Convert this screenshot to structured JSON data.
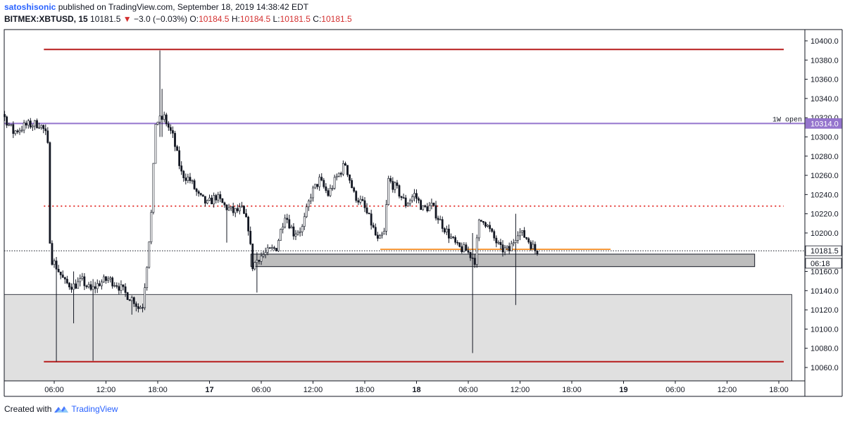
{
  "header": {
    "author": "satoshisonic",
    "published_text": "published on TradingView.com, September 18, 2019 14:38:42 EDT",
    "symbol": "BITMEX:XBTUSD, 15",
    "last": "10181.5",
    "change_arrow": "▼",
    "change": "−3.0 (−0.03%)",
    "o_label": "O:",
    "o_value": "10184.5",
    "h_label": "H:",
    "h_value": "10184.5",
    "l_label": "L:",
    "l_value": "10181.5",
    "c_label": "C:",
    "c_value": "10181.5"
  },
  "footer": {
    "created_with": "Created with",
    "brand": "TradingView",
    "logo_icon": "tradingview-logo-icon"
  },
  "colors": {
    "candle": "#131722",
    "range_line": "#b71c1c",
    "mid_dotted": "#e53935",
    "weekly_open": "#9575cd",
    "orange_line": "#f57c00",
    "zone_dark": "#bdbdbd",
    "zone_light": "#e0e0e0",
    "down_text": "#d32f2f"
  },
  "chart_data": {
    "type": "candlestick",
    "symbol": "BITMEX:XBTUSD",
    "interval": "15",
    "ylim": [
      10044,
      10420
    ],
    "y_ticks": [
      10060,
      10080,
      10100,
      10120,
      10140,
      10160,
      10180,
      10200,
      10220,
      10240,
      10260,
      10280,
      10300,
      10320,
      10340,
      10360,
      10380,
      10400
    ],
    "y_tick_labels": [
      "10060.0",
      "10080.0",
      "10100.0",
      "10120.0",
      "10140.0",
      "10160.0",
      "10180.0",
      "10200.0",
      "10220.0",
      "10240.0",
      "10260.0",
      "10280.0",
      "10300.0",
      "10320.0",
      "10340.0",
      "10360.0",
      "10380.0",
      "10400.0"
    ],
    "x_hours_range": [
      -3,
      78
    ],
    "x_ticks": [
      {
        "h": 6,
        "label": "06:00",
        "bold": false
      },
      {
        "h": 12,
        "label": "12:00",
        "bold": false
      },
      {
        "h": 18,
        "label": "18:00",
        "bold": false
      },
      {
        "h": 24,
        "label": "17",
        "bold": true
      },
      {
        "h": 30,
        "label": "06:00",
        "bold": false
      },
      {
        "h": 36,
        "label": "12:00",
        "bold": false
      },
      {
        "h": 42,
        "label": "18:00",
        "bold": false
      },
      {
        "h": 48,
        "label": "18",
        "bold": true
      },
      {
        "h": 54,
        "label": "06:00",
        "bold": false
      },
      {
        "h": 60,
        "label": "12:00",
        "bold": false
      },
      {
        "h": 66,
        "label": "18:00",
        "bold": false
      },
      {
        "h": 72,
        "label": "19",
        "bold": true
      },
      {
        "h": 78,
        "label": "06:00",
        "bold": false
      },
      {
        "h": 84,
        "label": "12:00",
        "bold": false
      },
      {
        "h": 90,
        "label": "18:00",
        "bold": false
      }
    ],
    "horizontal_lines": [
      {
        "name": "range-high",
        "price": 10391,
        "h_start": 4.8,
        "h_end": 87.8,
        "style": "solid",
        "color": "#b71c1c"
      },
      {
        "name": "range-low",
        "price": 10066,
        "h_start": 4.8,
        "h_end": 87.8,
        "style": "solid",
        "color": "#b71c1c"
      },
      {
        "name": "mid-level",
        "price": 10228,
        "h_start": 4.8,
        "h_end": 87.8,
        "style": "dotted",
        "color": "#e53935"
      },
      {
        "name": "weekly-open",
        "price": 10314,
        "h_start": -3,
        "h_end": 91.5,
        "style": "solid",
        "color": "#9575cd"
      },
      {
        "name": "orange-level",
        "price": 10183,
        "h_start": 43.8,
        "h_end": 70.5,
        "style": "solid",
        "color": "#f57c00"
      },
      {
        "name": "last-price",
        "price": 10181.5,
        "h_start": -3,
        "h_end": 91.5,
        "style": "dotted",
        "color": "#131722"
      }
    ],
    "zones": [
      {
        "name": "demand-zone-upper",
        "price_high": 10178,
        "price_low": 10165,
        "h_start": 28.8,
        "h_end": 87.2,
        "color": "#bdbdbd"
      },
      {
        "name": "demand-zone-lower",
        "price_high": 10136,
        "price_low": 10044,
        "h_start": -3,
        "h_end": 91.5,
        "color": "#e0e0e0"
      }
    ],
    "price_labels": [
      {
        "name": "weekly-open-price-label",
        "text": "10314.0",
        "price": 10314,
        "bg": "#9575cd",
        "fg": "#ffffff"
      },
      {
        "name": "last-price-label",
        "text": "10181.5",
        "price": 10181.5,
        "bg": "#ffffff",
        "fg": "#131722"
      },
      {
        "name": "countdown-label",
        "text": "06:18",
        "price": 10168.5,
        "bg": "#ffffff",
        "fg": "#131722"
      }
    ],
    "annotations": [
      {
        "name": "weekly-open-annotation",
        "text": "1W open",
        "price": 10314
      }
    ],
    "key_points": [
      [
        -3,
        10332
      ],
      [
        -1.5,
        10338
      ],
      [
        0,
        10328
      ],
      [
        1.5,
        10305
      ],
      [
        3,
        10312
      ],
      [
        4.5,
        10314
      ],
      [
        5.2,
        10305
      ],
      [
        5.5,
        10290
      ],
      [
        5.8,
        10175
      ],
      [
        6.5,
        10165
      ],
      [
        7.5,
        10148
      ],
      [
        8.5,
        10145
      ],
      [
        9.5,
        10150
      ],
      [
        10.5,
        10140
      ],
      [
        11.5,
        10148
      ],
      [
        12.5,
        10152
      ],
      [
        13.5,
        10147
      ],
      [
        14.5,
        10137
      ],
      [
        15.5,
        10130
      ],
      [
        16,
        10122
      ],
      [
        16.5,
        10125
      ],
      [
        17,
        10168
      ],
      [
        17.5,
        10220
      ],
      [
        18,
        10315
      ],
      [
        19,
        10320
      ],
      [
        20,
        10300
      ],
      [
        21,
        10262
      ],
      [
        22,
        10255
      ],
      [
        23,
        10238
      ],
      [
        24,
        10230
      ],
      [
        25,
        10238
      ],
      [
        26,
        10228
      ],
      [
        27,
        10222
      ],
      [
        28,
        10224
      ],
      [
        28.8,
        10205
      ],
      [
        29.2,
        10165
      ],
      [
        30,
        10175
      ],
      [
        31,
        10180
      ],
      [
        32,
        10185
      ],
      [
        33,
        10220
      ],
      [
        34,
        10200
      ],
      [
        35,
        10205
      ],
      [
        36,
        10240
      ],
      [
        37,
        10255
      ],
      [
        38,
        10240
      ],
      [
        39,
        10258
      ],
      [
        40,
        10272
      ],
      [
        41,
        10240
      ],
      [
        42,
        10230
      ],
      [
        43,
        10210
      ],
      [
        43.8,
        10190
      ],
      [
        44.5,
        10200
      ],
      [
        45,
        10255
      ],
      [
        46,
        10245
      ],
      [
        47,
        10230
      ],
      [
        48,
        10240
      ],
      [
        49,
        10225
      ],
      [
        50,
        10228
      ],
      [
        51,
        10212
      ],
      [
        52,
        10198
      ],
      [
        53,
        10185
      ],
      [
        54,
        10182
      ],
      [
        55,
        10172
      ],
      [
        55.5,
        10210
      ],
      [
        56,
        10215
      ],
      [
        57,
        10198
      ],
      [
        58,
        10183
      ],
      [
        59,
        10182
      ],
      [
        60,
        10202
      ],
      [
        61,
        10195
      ],
      [
        62,
        10182
      ]
    ],
    "wick_overrides": [
      {
        "h": 18.3,
        "high": 10390,
        "low": 10300
      },
      {
        "h": 18.6,
        "high": 10350,
        "low": 10300
      },
      {
        "h": 6.2,
        "high": 10175,
        "low": 10066
      },
      {
        "h": 10.5,
        "high": 10152,
        "low": 10067
      },
      {
        "h": 54.5,
        "high": 10200,
        "low": 10075
      },
      {
        "h": 59.5,
        "high": 10220,
        "low": 10125
      },
      {
        "h": 29.5,
        "high": 10180,
        "low": 10138
      },
      {
        "h": 8.2,
        "high": 10160,
        "low": 10106
      },
      {
        "h": 15,
        "high": 10135,
        "low": 10115
      },
      {
        "h": 26,
        "high": 10230,
        "low": 10190
      }
    ]
  }
}
